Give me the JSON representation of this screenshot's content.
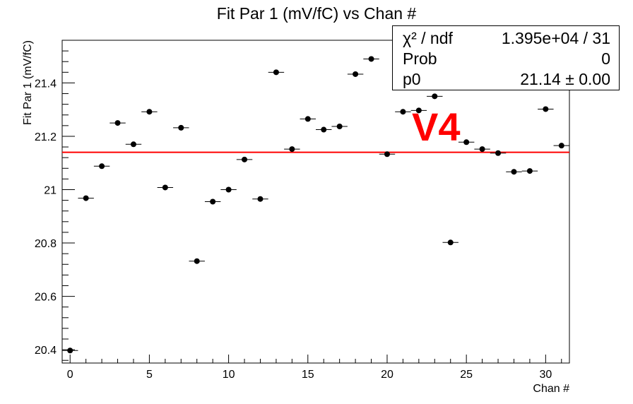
{
  "chart_data": {
    "type": "scatter",
    "title": "Fit Par 1 (mV/fC) vs Chan #",
    "xlabel": "Chan #",
    "ylabel": "Fit Par 1 (mV/fC)",
    "xlim": [
      -0.5,
      31.5
    ],
    "ylim": [
      20.35,
      21.56
    ],
    "xticks": [
      0,
      5,
      10,
      15,
      20,
      25,
      30
    ],
    "xtick_labels": [
      "0",
      "5",
      "10",
      "15",
      "20",
      "25",
      "30"
    ],
    "yticks": [
      20.4,
      20.6,
      20.8,
      21.0,
      21.2,
      21.4
    ],
    "ytick_labels": [
      "20.4",
      "20.6",
      "20.8",
      "21",
      "21.2",
      "21.4"
    ],
    "x": [
      0,
      1,
      2,
      3,
      4,
      5,
      6,
      7,
      8,
      9,
      10,
      11,
      12,
      13,
      14,
      15,
      16,
      17,
      18,
      19,
      20,
      21,
      22,
      23,
      24,
      25,
      26,
      27,
      28,
      29,
      30,
      31
    ],
    "y": [
      20.397,
      20.968,
      21.088,
      21.25,
      21.17,
      21.292,
      21.008,
      21.232,
      20.732,
      20.955,
      21.0,
      21.113,
      20.965,
      21.44,
      21.152,
      21.265,
      21.225,
      21.237,
      21.433,
      21.49,
      21.133,
      21.292,
      21.297,
      21.35,
      20.802,
      21.178,
      21.152,
      21.137,
      21.067,
      21.07,
      21.302,
      21.165
    ],
    "x_error": 0.5,
    "fit": {
      "type": "constant",
      "value": 21.14,
      "color": "#ff0000"
    },
    "grid": false,
    "marker_color": "#000000"
  },
  "stats": {
    "rows": [
      {
        "label": "χ² / ndf",
        "value": "1.395e+04 / 31"
      },
      {
        "label": "Prob",
        "value": "0"
      },
      {
        "label": "p0",
        "value": "21.14 ± 0.00"
      }
    ]
  },
  "overlay": {
    "text": "V4",
    "color": "#ff0000"
  }
}
